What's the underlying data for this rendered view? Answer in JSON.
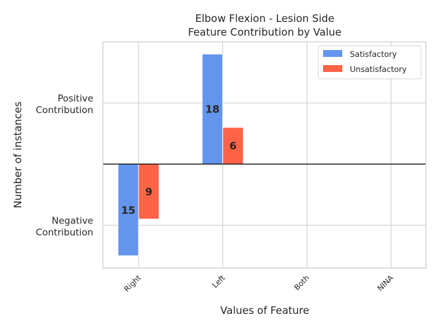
{
  "chart_data": {
    "type": "bar",
    "title_line1": "Elbow Flexion - Lesion Side",
    "title_line2": "Feature Contribution by Value",
    "xlabel": "Values of Feature",
    "ylabel": "Number of instances",
    "categories": [
      "Right",
      "Left",
      "Both",
      "NINA"
    ],
    "ytick_labels": [
      {
        "line1": "Positive",
        "line2": "Contribution"
      },
      {
        "line1": "Negative",
        "line2": "Contribution"
      }
    ],
    "series": [
      {
        "name": "Satisfactory",
        "color": "#6495ED",
        "values": [
          -15,
          18,
          0,
          0
        ],
        "labels": [
          "15",
          "18",
          "",
          ""
        ]
      },
      {
        "name": "Unsatisfactory",
        "color": "#FF6347",
        "values": [
          -9,
          6,
          0,
          0
        ],
        "labels": [
          "9",
          "6",
          "",
          ""
        ]
      }
    ],
    "ylim": [
      -17,
      20
    ],
    "grid": true,
    "legend": "top-right"
  }
}
